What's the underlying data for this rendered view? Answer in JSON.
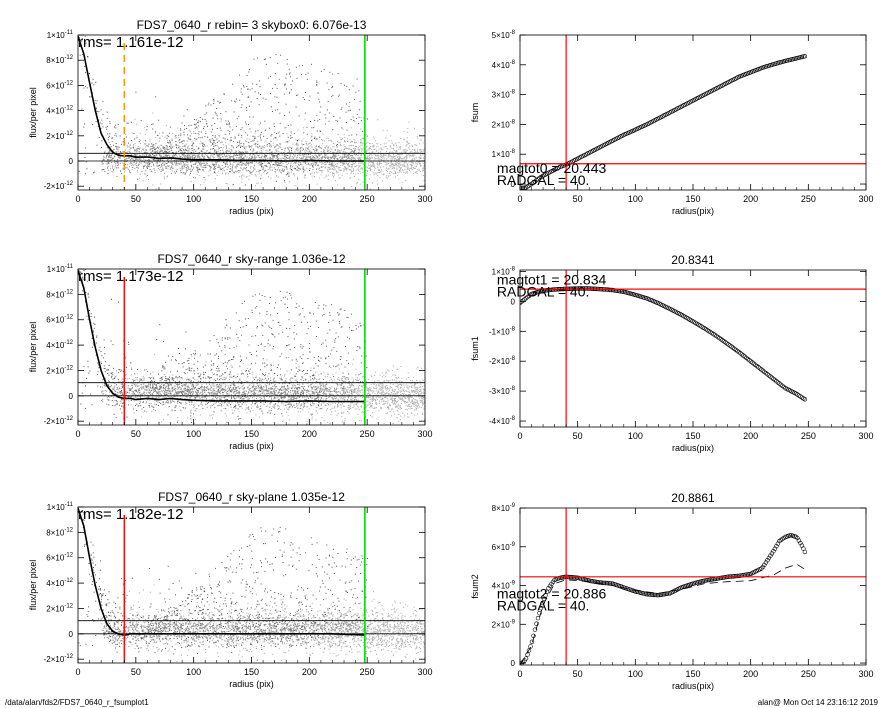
{
  "footer": {
    "path": "/data/alan/fds2/FDS7_0640_r_fsumplot1",
    "stamp": "alan@  Mon Oct 14 23:16:12 2019"
  },
  "colors": {
    "axis": "#000000",
    "points": "#555555",
    "points_light": "#a8a8a8",
    "sky_line": "#000000",
    "orange_marker": "#ff8c00",
    "red_marker": "#ff0000",
    "green_marker": "#00dd00"
  },
  "chart_data": [
    {
      "id": "p1",
      "type": "scatter",
      "title": "FDS7_0640_r rebin= 3    skybox0:  6.076e-13",
      "xlabel": "radius (pix)",
      "ylabel": "flux/per pixel",
      "xlim": [
        0,
        300
      ],
      "ylim": [
        -2.3e-12,
        1e-11
      ],
      "xticks": [
        0,
        50,
        100,
        150,
        200,
        250,
        300
      ],
      "yticks": [
        {
          "v": 1e-11,
          "m": "1×10",
          "e": "-11"
        },
        {
          "v": 8e-12,
          "m": "8×10",
          "e": "-12"
        },
        {
          "v": 6e-12,
          "m": "6×10",
          "e": "-12"
        },
        {
          "v": 4e-12,
          "m": "4×10",
          "e": "-12"
        },
        {
          "v": 2e-12,
          "m": "2×10",
          "e": "-12"
        },
        {
          "v": 0,
          "m": "0",
          "e": ""
        },
        {
          "v": -2e-12,
          "m": "-2×10",
          "e": "-12"
        }
      ],
      "annotation": "rms= 1.161e-12",
      "hlines": [
        0,
        6.1e-13
      ],
      "vline_marker": {
        "x": 40,
        "color": "orange",
        "style": "dashed"
      },
      "vline_limit": {
        "x": 248,
        "color": "green"
      },
      "profile": {
        "x": [
          0,
          5,
          10,
          15,
          20,
          25,
          30,
          35,
          40,
          45,
          50,
          60,
          70,
          80,
          90,
          100,
          120,
          140,
          160,
          180,
          200,
          220,
          248
        ],
        "y": [
          9.9e-12,
          8.5e-12,
          6.2e-12,
          4e-12,
          2.2e-12,
          1.3e-12,
          7e-13,
          4.5e-13,
          4e-13,
          4.2e-13,
          3e-13,
          3.2e-13,
          2e-13,
          2.5e-13,
          1.5e-13,
          1e-13,
          1e-13,
          5e-14,
          5e-14,
          0,
          5e-14,
          0,
          0
        ]
      }
    },
    {
      "id": "p2",
      "type": "scatter",
      "title": "FDS7_0640_r sky-range  1.036e-12",
      "xlabel": "radius (pix)",
      "ylabel": "flux/per pixel",
      "xlim": [
        0,
        300
      ],
      "ylim": [
        -2.3e-12,
        1e-11
      ],
      "xticks": [
        0,
        50,
        100,
        150,
        200,
        250,
        300
      ],
      "yticks": [
        {
          "v": 1e-11,
          "m": "1×10",
          "e": "-11"
        },
        {
          "v": 8e-12,
          "m": "8×10",
          "e": "-12"
        },
        {
          "v": 6e-12,
          "m": "6×10",
          "e": "-12"
        },
        {
          "v": 4e-12,
          "m": "4×10",
          "e": "-12"
        },
        {
          "v": 2e-12,
          "m": "2×10",
          "e": "-12"
        },
        {
          "v": 0,
          "m": "0",
          "e": ""
        },
        {
          "v": -2e-12,
          "m": "-2×10",
          "e": "-12"
        }
      ],
      "annotation": "rms= 1.173e-12",
      "hlines": [
        0,
        1.036e-12
      ],
      "vline_marker": {
        "x": 40,
        "color": "red",
        "style": "solid"
      },
      "vline_limit": {
        "x": 248,
        "color": "green"
      },
      "profile": {
        "x": [
          0,
          5,
          10,
          15,
          20,
          25,
          30,
          35,
          40,
          45,
          50,
          60,
          70,
          80,
          90,
          100,
          120,
          140,
          160,
          180,
          200,
          220,
          248
        ],
        "y": [
          9.9e-12,
          8.5e-12,
          6e-12,
          3.8e-12,
          2e-12,
          8e-13,
          2e-13,
          -1e-13,
          -2e-13,
          -2e-13,
          -3e-13,
          -2e-13,
          -3e-13,
          -2e-13,
          -3e-13,
          -3.5e-13,
          -4e-13,
          -4e-13,
          -4e-13,
          -4.5e-13,
          -4e-13,
          -4.5e-13,
          -4.5e-13
        ]
      }
    },
    {
      "id": "p3",
      "type": "scatter",
      "title": "FDS7_0640_r sky-plane  1.035e-12",
      "xlabel": "radius (pix)",
      "ylabel": "flux/per pixel",
      "xlim": [
        0,
        300
      ],
      "ylim": [
        -2.3e-12,
        1e-11
      ],
      "xticks": [
        0,
        50,
        100,
        150,
        200,
        250,
        300
      ],
      "yticks": [
        {
          "v": 1e-11,
          "m": "1×10",
          "e": "-11"
        },
        {
          "v": 8e-12,
          "m": "8×10",
          "e": "-12"
        },
        {
          "v": 6e-12,
          "m": "6×10",
          "e": "-12"
        },
        {
          "v": 4e-12,
          "m": "4×10",
          "e": "-12"
        },
        {
          "v": 2e-12,
          "m": "2×10",
          "e": "-12"
        },
        {
          "v": 0,
          "m": "0",
          "e": ""
        },
        {
          "v": -2e-12,
          "m": "-2×10",
          "e": "-12"
        }
      ],
      "annotation": "rms= 1.182e-12",
      "hlines": [
        0,
        1.035e-12
      ],
      "vline_marker": {
        "x": 40,
        "color": "red",
        "style": "solid"
      },
      "vline_limit": {
        "x": 248,
        "color": "green"
      },
      "profile": {
        "x": [
          0,
          5,
          10,
          15,
          20,
          25,
          30,
          35,
          40,
          45,
          50,
          60,
          70,
          80,
          90,
          100,
          120,
          140,
          160,
          180,
          200,
          220,
          248
        ],
        "y": [
          9.9e-12,
          8.5e-12,
          6e-12,
          3.8e-12,
          2e-12,
          8e-13,
          2e-13,
          0,
          -1e-13,
          0,
          0,
          0,
          0,
          0,
          0,
          0,
          0,
          0,
          0,
          0,
          0,
          0,
          -1e-13
        ]
      }
    },
    {
      "id": "p4",
      "type": "scatter",
      "title": "",
      "xlabel": "radius(pix)",
      "ylabel": "fsum",
      "xlim": [
        0,
        300
      ],
      "ylim": [
        -2e-09,
        5e-08
      ],
      "xticks": [
        0,
        50,
        100,
        150,
        200,
        250,
        300
      ],
      "yticks": [
        {
          "v": 5e-08,
          "m": "5×10",
          "e": "-8"
        },
        {
          "v": 4e-08,
          "m": "4×10",
          "e": "-8"
        },
        {
          "v": 3e-08,
          "m": "3×10",
          "e": "-8"
        },
        {
          "v": 2e-08,
          "m": "2×10",
          "e": "-8"
        },
        {
          "v": 1e-08,
          "m": "1×10",
          "e": "-8"
        },
        {
          "v": 0,
          "m": "0",
          "e": ""
        }
      ],
      "annot_lines": [
        "magtot0 =   20.443",
        "RADGAL =     40."
      ],
      "annot_at": {
        "x": -20,
        "y": -1e-09
      },
      "hline_red": 6.8e-09,
      "vline_red": 40,
      "curve": {
        "x": [
          0,
          5,
          10,
          15,
          20,
          25,
          30,
          35,
          40,
          50,
          60,
          70,
          80,
          90,
          100,
          110,
          120,
          130,
          140,
          150,
          160,
          170,
          180,
          190,
          200,
          210,
          220,
          230,
          240,
          248
        ],
        "y": [
          -1.3e-09,
          -1.2e-09,
          0,
          1.5e-09,
          2.8e-09,
          3.8e-09,
          4.8e-09,
          5.8e-09,
          6.5e-09,
          8.5e-09,
          1.05e-08,
          1.25e-08,
          1.45e-08,
          1.65e-08,
          1.82e-08,
          2e-08,
          2.2e-08,
          2.4e-08,
          2.6e-08,
          2.8e-08,
          3e-08,
          3.2e-08,
          3.4e-08,
          3.6e-08,
          3.75e-08,
          3.9e-08,
          4.02e-08,
          4.13e-08,
          4.22e-08,
          4.3e-08
        ]
      }
    },
    {
      "id": "p5",
      "type": "scatter",
      "title": "20.8341",
      "xlabel": "radius(pix)",
      "ylabel": "fsum1",
      "xlim": [
        0,
        300
      ],
      "ylim": [
        -4.2e-08,
        1.05e-08
      ],
      "xticks": [
        0,
        50,
        100,
        150,
        200,
        250,
        300
      ],
      "yticks": [
        {
          "v": 1e-08,
          "m": "1×10",
          "e": "-8"
        },
        {
          "v": 0,
          "m": "0",
          "e": ""
        },
        {
          "v": -1e-08,
          "m": "-1×10",
          "e": "-8"
        },
        {
          "v": -2e-08,
          "m": "-2×10",
          "e": "-8"
        },
        {
          "v": -3e-08,
          "m": "-3×10",
          "e": "-8"
        },
        {
          "v": -4e-08,
          "m": "-4×10",
          "e": "-8"
        }
      ],
      "annot_lines": [
        "magtot1 =   20.834",
        "RADGAL =     40."
      ],
      "annot_at": {
        "x": -20,
        "y": 1e-09
      },
      "hline_red": 4.1e-09,
      "vline_red": 40,
      "curve": {
        "x": [
          0,
          10,
          20,
          30,
          40,
          50,
          60,
          70,
          80,
          90,
          100,
          110,
          120,
          130,
          140,
          150,
          160,
          170,
          180,
          190,
          200,
          210,
          220,
          230,
          240,
          248
        ],
        "y": [
          -5e-10,
          2.5e-09,
          3.6e-09,
          4e-09,
          4.2e-09,
          4.3e-09,
          4.3e-09,
          4.1e-09,
          3.8e-09,
          3.2e-09,
          2.2e-09,
          1e-09,
          -6e-10,
          -2.5e-09,
          -4.5e-09,
          -6.7e-09,
          -9e-09,
          -1.15e-08,
          -1.42e-08,
          -1.7e-08,
          -2e-08,
          -2.3e-08,
          -2.6e-08,
          -2.9e-08,
          -3.1e-08,
          -3.3e-08
        ]
      }
    },
    {
      "id": "p6",
      "type": "scatter",
      "title": "20.8861",
      "xlabel": "radius(pix)",
      "ylabel": "fsum2",
      "xlim": [
        0,
        300
      ],
      "ylim": [
        -1e-10,
        8e-09
      ],
      "xticks": [
        0,
        50,
        100,
        150,
        200,
        250,
        300
      ],
      "yticks": [
        {
          "v": 8e-09,
          "m": "8×10",
          "e": "-9"
        },
        {
          "v": 6e-09,
          "m": "6×10",
          "e": "-9"
        },
        {
          "v": 4e-09,
          "m": "4×10",
          "e": "-9"
        },
        {
          "v": 2e-09,
          "m": "2×10",
          "e": "-9"
        },
        {
          "v": 0,
          "m": "0",
          "e": ""
        }
      ],
      "annot_lines": [
        "magtot2 =   20.886",
        "RADGAL =     40."
      ],
      "annot_at": {
        "x": -20,
        "y": 2.6e-09
      },
      "hline_red": 4.45e-09,
      "vline_red": 40,
      "curve": {
        "x": [
          0,
          5,
          10,
          15,
          20,
          25,
          30,
          35,
          40,
          50,
          60,
          70,
          80,
          90,
          100,
          110,
          120,
          130,
          140,
          150,
          160,
          170,
          180,
          190,
          200,
          210,
          220,
          225,
          230,
          235,
          240,
          245,
          248
        ],
        "y": [
          -1e-10,
          2e-10,
          1e-09,
          2.2e-09,
          3.2e-09,
          3.9e-09,
          4.3e-09,
          4.4e-09,
          4.45e-09,
          4.4e-09,
          4.25e-09,
          4.15e-09,
          4.1e-09,
          3.9e-09,
          3.7e-09,
          3.55e-09,
          3.5e-09,
          3.6e-09,
          3.9e-09,
          4.1e-09,
          4.25e-09,
          4.35e-09,
          4.45e-09,
          4.5e-09,
          4.6e-09,
          4.9e-09,
          5.8e-09,
          6.3e-09,
          6.5e-09,
          6.6e-09,
          6.5e-09,
          6e-09,
          5.6e-09
        ]
      },
      "dashed": {
        "x": [
          0,
          10,
          20,
          30,
          40,
          60,
          80,
          100,
          120,
          140,
          160,
          180,
          200,
          220,
          230,
          240,
          248
        ],
        "y": [
          -1e-10,
          9e-10,
          3e-09,
          4.1e-09,
          4.3e-09,
          4.2e-09,
          4e-09,
          3.75e-09,
          3.6e-09,
          3.8e-09,
          4.1e-09,
          4.2e-09,
          4.25e-09,
          4.55e-09,
          4.9e-09,
          5.1e-09,
          4.8e-09
        ]
      }
    }
  ]
}
